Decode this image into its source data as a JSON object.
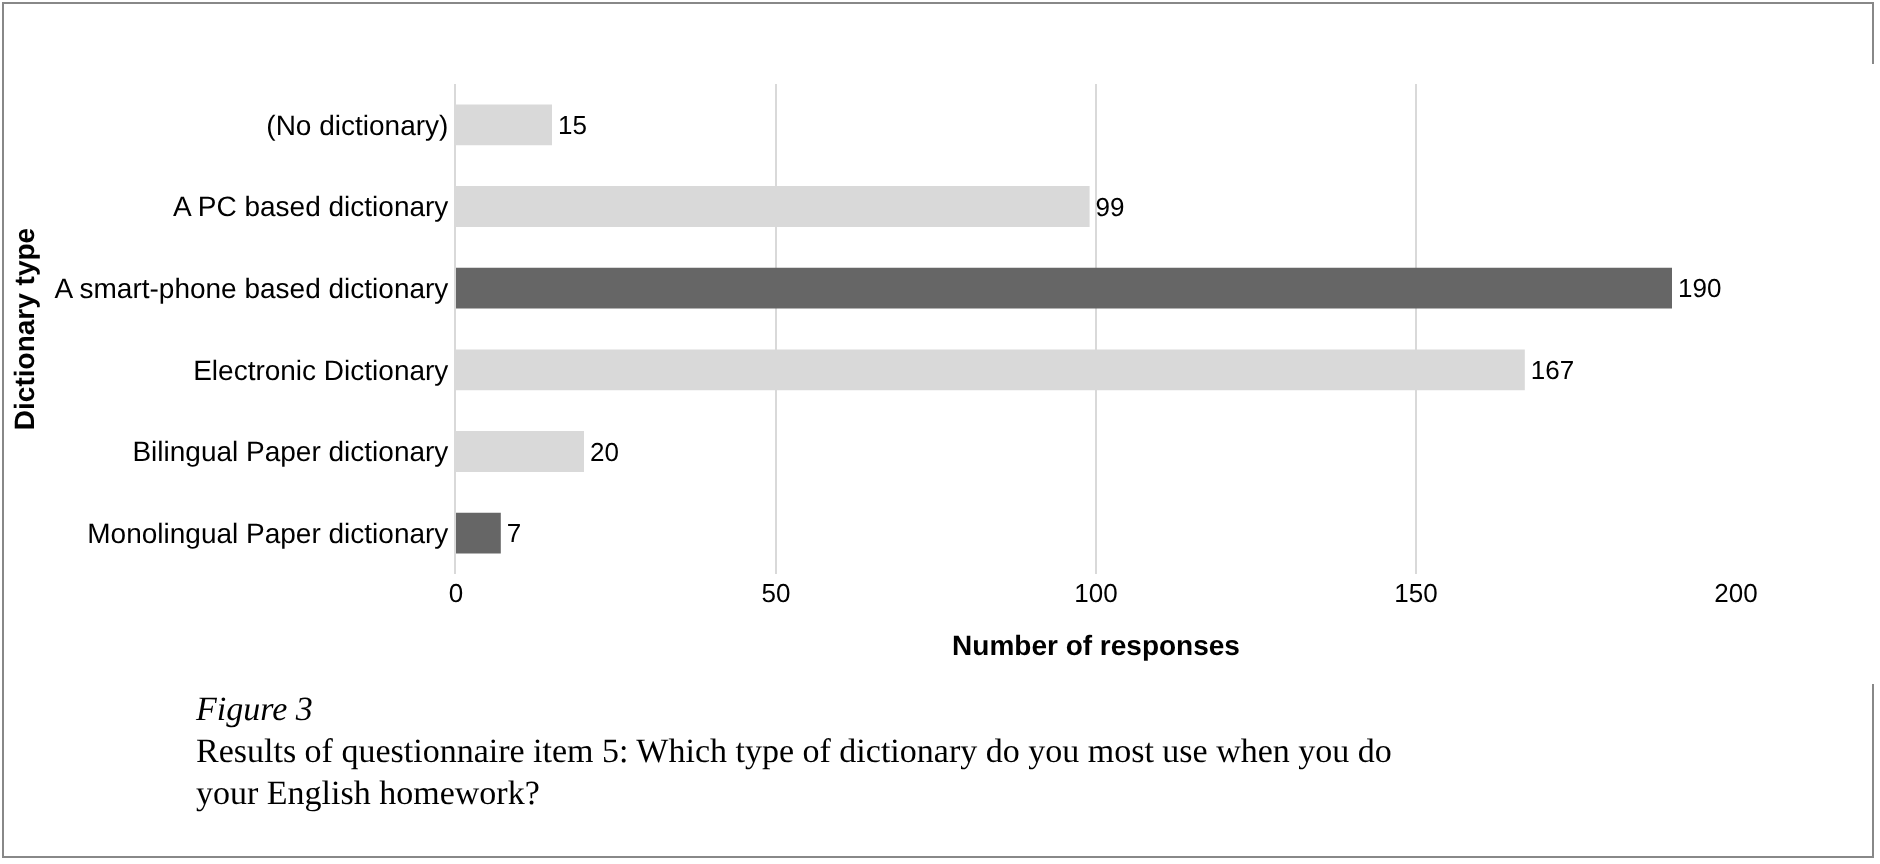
{
  "chart_data": {
    "type": "bar",
    "orientation": "horizontal",
    "categories": [
      "(No dictionary)",
      "A PC based dictionary",
      "A smart-phone based dictionary",
      "Electronic Dictionary",
      "Bilingual Paper dictionary",
      "Monolingual Paper dictionary"
    ],
    "values": [
      15,
      99,
      190,
      167,
      20,
      7
    ],
    "colors": [
      "#d9d9d9",
      "#d9d9d9",
      "#666666",
      "#d9d9d9",
      "#d9d9d9",
      "#666666"
    ],
    "xlim": [
      0,
      200
    ],
    "xticks": [
      0,
      50,
      100,
      150,
      200
    ],
    "grid": "x",
    "data_labels": true,
    "xlabel": "Number of responses",
    "ylabel": "Dictionary type",
    "annotations": [
      "Figure 3",
      "Results of questionnaire item 5: Which type of dictionary do you most use when you do your English homework?"
    ]
  }
}
